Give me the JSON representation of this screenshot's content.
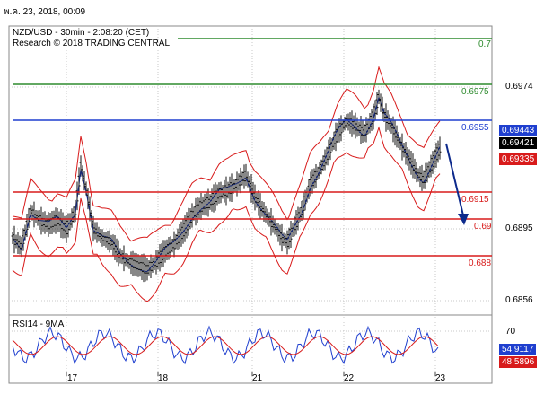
{
  "header": {
    "date_time": "พ.ค. 23, 2018, 00:09",
    "symbol_line": "NZD/USD - 30min - 2:08:20 (CET)",
    "research_line": "Research © 2018 TRADING CENTRAL"
  },
  "levels": [
    {
      "label": "0.7",
      "color": "#2e8b2e"
    },
    {
      "label": "0.6975",
      "color": "#2e8b2e"
    },
    {
      "label": "0.6955",
      "color": "#1f3fcf"
    },
    {
      "label": "0.6915",
      "color": "#d81b1b"
    },
    {
      "label": "0.69",
      "color": "#d81b1b"
    },
    {
      "label": "0.688",
      "color": "#d81b1b"
    }
  ],
  "price_axis": {
    "ticks": [
      "0.6974",
      "0.6895",
      "0.6856"
    ],
    "badges": [
      {
        "text": "0.69443",
        "color": "#1f3fcf"
      },
      {
        "text": "0.69421",
        "color": "#000000"
      },
      {
        "text": "0.69335",
        "color": "#d81b1b"
      }
    ]
  },
  "rsi": {
    "title": "RSI14 - 9MA",
    "tick": "70",
    "values": [
      {
        "text": "54.9117",
        "color": "#1f3fcf"
      },
      {
        "text": "48.5896",
        "color": "#d81b1b"
      }
    ]
  },
  "time_axis": {
    "ticks": [
      "17",
      "18",
      "21",
      "22",
      "23"
    ]
  }
}
